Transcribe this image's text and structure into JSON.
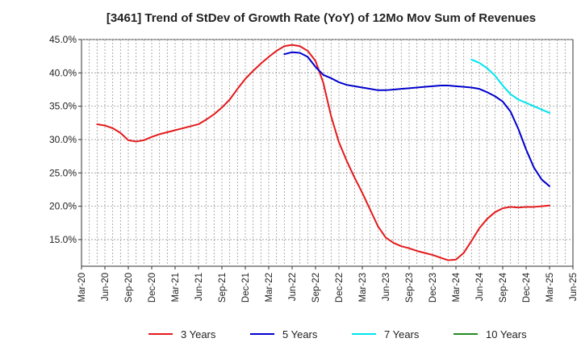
{
  "chart_data": {
    "type": "line",
    "title": "[3461]  Trend of StDev of Growth Rate (YoY) of 12Mo Mov Sum of Revenues",
    "xlabel": "",
    "ylabel": "",
    "ylim": [
      11,
      45
    ],
    "y_ticks": [
      15,
      20,
      25,
      30,
      35,
      40,
      45
    ],
    "y_tick_labels": [
      "15.0%",
      "20.0%",
      "25.0%",
      "30.0%",
      "35.0%",
      "40.0%",
      "45.0%"
    ],
    "x_ticks": [
      "Mar-20",
      "Jun-20",
      "Sep-20",
      "Dec-20",
      "Mar-21",
      "Jun-21",
      "Sep-21",
      "Dec-21",
      "Mar-22",
      "Jun-22",
      "Sep-22",
      "Dec-22",
      "Mar-23",
      "Jun-23",
      "Sep-23",
      "Dec-23",
      "Mar-24",
      "Jun-24",
      "Sep-24",
      "Dec-24",
      "Mar-25",
      "Jun-25"
    ],
    "x_index_note": "x values are month offsets from Mar-20 (0 = Mar-20, 63 = Jun-25)",
    "x_range": [
      0,
      63
    ],
    "grid": true,
    "legend_position": "bottom",
    "series": [
      {
        "name": "3 Years",
        "color": "#e41a1c",
        "x": [
          2,
          3,
          4,
          5,
          6,
          7,
          8,
          9,
          10,
          11,
          12,
          13,
          14,
          15,
          16,
          17,
          18,
          19,
          20,
          21,
          22,
          23,
          24,
          25,
          26,
          27,
          28,
          29,
          30,
          31,
          32,
          33,
          34,
          35,
          36,
          37,
          38,
          39,
          40,
          41,
          42,
          43,
          44,
          45,
          46,
          47,
          48,
          49,
          50,
          51,
          52,
          53,
          54,
          55,
          56,
          57,
          58,
          59,
          60
        ],
        "values": [
          32.3,
          32.1,
          31.7,
          31.0,
          29.9,
          29.7,
          29.9,
          30.4,
          30.8,
          31.1,
          31.4,
          31.7,
          32.0,
          32.3,
          33.0,
          33.8,
          34.8,
          36.0,
          37.6,
          39.1,
          40.3,
          41.4,
          42.4,
          43.3,
          44.0,
          44.2,
          44.0,
          43.3,
          41.8,
          38.5,
          33.5,
          29.6,
          26.8,
          24.3,
          22.0,
          19.5,
          17.0,
          15.3,
          14.5,
          14.0,
          13.7,
          13.3,
          13.0,
          12.7,
          12.3,
          11.9,
          12.0,
          13.0,
          14.8,
          16.7,
          18.1,
          19.1,
          19.7,
          19.9,
          19.8,
          19.9,
          19.9,
          20.0,
          20.1
        ]
      },
      {
        "name": "5 Years",
        "color": "#0000cd",
        "x": [
          26,
          27,
          28,
          29,
          30,
          31,
          32,
          33,
          34,
          35,
          36,
          37,
          38,
          39,
          40,
          41,
          42,
          43,
          44,
          45,
          46,
          47,
          48,
          49,
          50,
          51,
          52,
          53,
          54,
          55,
          56,
          57,
          58,
          59,
          60
        ],
        "values": [
          42.8,
          43.1,
          43.0,
          42.4,
          40.9,
          39.7,
          39.2,
          38.6,
          38.2,
          38.0,
          37.8,
          37.6,
          37.4,
          37.4,
          37.5,
          37.6,
          37.7,
          37.8,
          37.9,
          38.0,
          38.1,
          38.1,
          38.0,
          37.9,
          37.8,
          37.6,
          37.1,
          36.5,
          35.7,
          34.2,
          31.6,
          28.5,
          25.8,
          24.0,
          23.0
        ]
      },
      {
        "name": "7 Years",
        "color": "#00e5ee",
        "x": [
          50,
          51,
          52,
          53,
          54,
          55,
          56,
          57,
          58,
          59,
          60
        ],
        "values": [
          42.0,
          41.5,
          40.7,
          39.6,
          38.1,
          36.8,
          36.0,
          35.5,
          35.0,
          34.5,
          34.0
        ]
      },
      {
        "name": "10 Years",
        "color": "#228b22",
        "x": [],
        "values": []
      }
    ]
  }
}
